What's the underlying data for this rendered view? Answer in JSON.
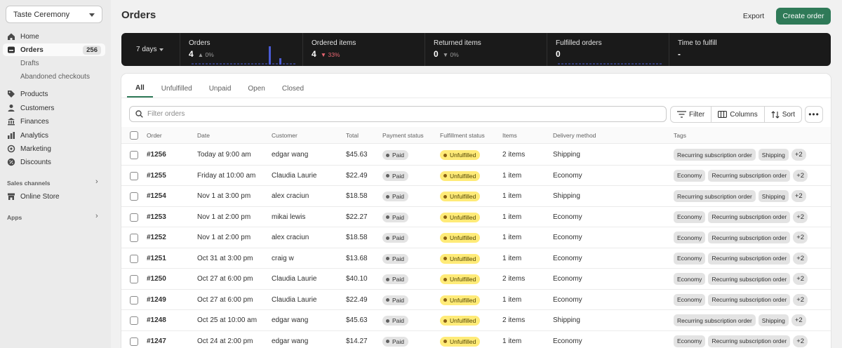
{
  "store": {
    "name": "Taste Ceremony"
  },
  "sidebar": {
    "items": [
      {
        "label": "Home",
        "icon": "home-icon"
      },
      {
        "label": "Orders",
        "icon": "orders-icon",
        "badge": "256",
        "active": true
      },
      {
        "label": "Products",
        "icon": "tag-icon"
      },
      {
        "label": "Customers",
        "icon": "person-icon"
      },
      {
        "label": "Finances",
        "icon": "bank-icon"
      },
      {
        "label": "Analytics",
        "icon": "chart-icon"
      },
      {
        "label": "Marketing",
        "icon": "target-icon"
      },
      {
        "label": "Discounts",
        "icon": "discount-icon"
      }
    ],
    "order_subitems": [
      "Drafts",
      "Abandoned checkouts"
    ],
    "sales_channels_label": "Sales channels",
    "online_store_label": "Online Store",
    "apps_label": "Apps"
  },
  "header": {
    "title": "Orders",
    "export_label": "Export",
    "create_label": "Create order"
  },
  "metrics": {
    "range_label": "7 days",
    "items": [
      {
        "label": "Orders",
        "value": "4",
        "change": "0%",
        "direction": "up"
      },
      {
        "label": "Ordered items",
        "value": "4",
        "change": "33%",
        "direction": "down"
      },
      {
        "label": "Returned items",
        "value": "0",
        "change": "0%",
        "direction": "down"
      },
      {
        "label": "Fulfilled orders",
        "value": "0",
        "change": "",
        "direction": ""
      },
      {
        "label": "Time to fulfill",
        "value": "-",
        "change": "",
        "direction": ""
      }
    ]
  },
  "tabs": [
    "All",
    "Unfulfilled",
    "Unpaid",
    "Open",
    "Closed"
  ],
  "search": {
    "placeholder": "Filter orders"
  },
  "toolbar": {
    "filter_label": "Filter",
    "columns_label": "Columns",
    "sort_label": "Sort",
    "more_label": "•••"
  },
  "table": {
    "headers": [
      "Order",
      "Date",
      "Customer",
      "Total",
      "Payment status",
      "Fulfillment status",
      "Items",
      "Delivery method",
      "Tags"
    ],
    "rows": [
      {
        "order": "#1256",
        "date": "Today at 9:00 am",
        "customer": "edgar wang",
        "total": "$45.63",
        "payment": "Paid",
        "fulfillment": "Unfulfilled",
        "items": "2 items",
        "delivery": "Shipping",
        "tags": [
          "Recurring subscription order",
          "Shipping"
        ],
        "more": "+2"
      },
      {
        "order": "#1255",
        "date": "Friday at 10:00 am",
        "customer": "Claudia Laurie",
        "total": "$22.49",
        "payment": "Paid",
        "fulfillment": "Unfulfilled",
        "items": "1 item",
        "delivery": "Economy",
        "tags": [
          "Economy",
          "Recurring subscription order"
        ],
        "more": "+2"
      },
      {
        "order": "#1254",
        "date": "Nov 1 at 3:00 pm",
        "customer": "alex craciun",
        "total": "$18.58",
        "payment": "Paid",
        "fulfillment": "Unfulfilled",
        "items": "1 item",
        "delivery": "Shipping",
        "tags": [
          "Recurring subscription order",
          "Shipping"
        ],
        "more": "+2"
      },
      {
        "order": "#1253",
        "date": "Nov 1 at 2:00 pm",
        "customer": "mikai lewis",
        "total": "$22.27",
        "payment": "Paid",
        "fulfillment": "Unfulfilled",
        "items": "1 item",
        "delivery": "Economy",
        "tags": [
          "Economy",
          "Recurring subscription order"
        ],
        "more": "+2"
      },
      {
        "order": "#1252",
        "date": "Nov 1 at 2:00 pm",
        "customer": "alex craciun",
        "total": "$18.58",
        "payment": "Paid",
        "fulfillment": "Unfulfilled",
        "items": "1 item",
        "delivery": "Economy",
        "tags": [
          "Economy",
          "Recurring subscription order"
        ],
        "more": "+2"
      },
      {
        "order": "#1251",
        "date": "Oct 31 at 3:00 pm",
        "customer": "craig w",
        "total": "$13.68",
        "payment": "Paid",
        "fulfillment": "Unfulfilled",
        "items": "1 item",
        "delivery": "Economy",
        "tags": [
          "Economy",
          "Recurring subscription order"
        ],
        "more": "+2"
      },
      {
        "order": "#1250",
        "date": "Oct 27 at 6:00 pm",
        "customer": "Claudia Laurie",
        "total": "$40.10",
        "payment": "Paid",
        "fulfillment": "Unfulfilled",
        "items": "2 items",
        "delivery": "Economy",
        "tags": [
          "Economy",
          "Recurring subscription order"
        ],
        "more": "+2"
      },
      {
        "order": "#1249",
        "date": "Oct 27 at 6:00 pm",
        "customer": "Claudia Laurie",
        "total": "$22.49",
        "payment": "Paid",
        "fulfillment": "Unfulfilled",
        "items": "1 item",
        "delivery": "Economy",
        "tags": [
          "Economy",
          "Recurring subscription order"
        ],
        "more": "+2"
      },
      {
        "order": "#1248",
        "date": "Oct 25 at 10:00 am",
        "customer": "edgar wang",
        "total": "$45.63",
        "payment": "Paid",
        "fulfillment": "Unfulfilled",
        "items": "2 items",
        "delivery": "Shipping",
        "tags": [
          "Recurring subscription order",
          "Shipping"
        ],
        "more": "+2"
      },
      {
        "order": "#1247",
        "date": "Oct 24 at 2:00 pm",
        "customer": "edgar wang",
        "total": "$14.27",
        "payment": "Paid",
        "fulfillment": "Unfulfilled",
        "items": "1 item",
        "delivery": "Economy",
        "tags": [
          "Economy",
          "Recurring subscription order"
        ],
        "more": "+2"
      }
    ]
  },
  "colors": {
    "primary": "#2f7a58",
    "metrics_bg": "#1a1a1a",
    "spark": "#4a5bd4",
    "unfulfilled_bg": "#ffeb78",
    "paid_bg": "#e3e3e3"
  }
}
